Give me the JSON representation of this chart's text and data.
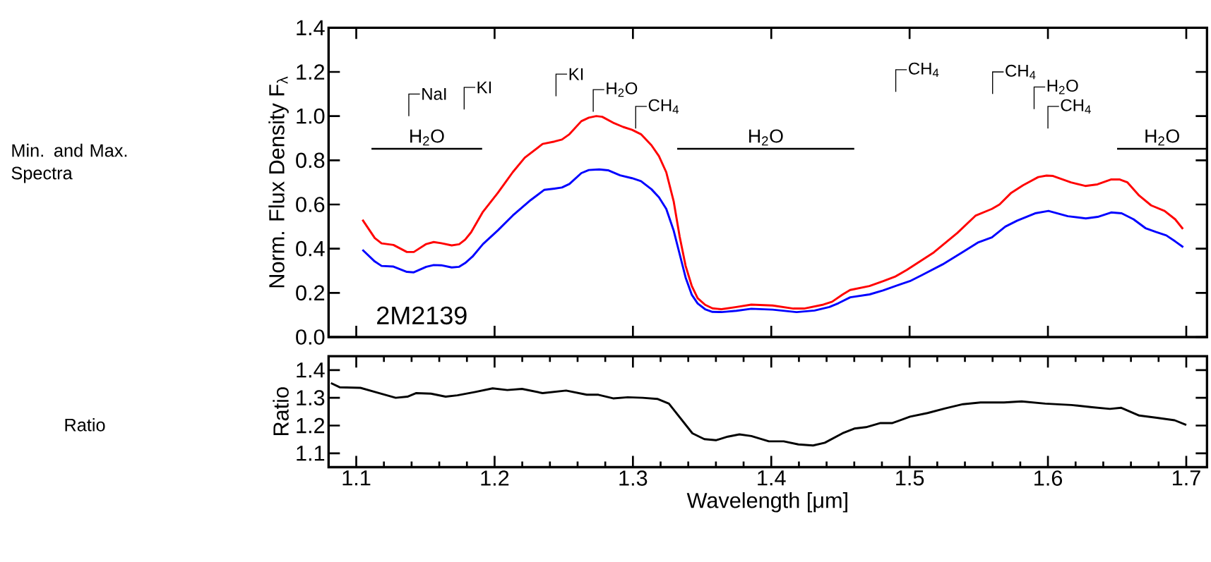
{
  "chart_data": [
    {
      "type": "line",
      "ylabel": "Norm. Flux Density F$_{λ}$",
      "xlim": [
        1.08,
        1.715
      ],
      "ylim": [
        0,
        1.4
      ],
      "xticks": [
        1.1,
        1.2,
        1.3,
        1.4,
        1.5,
        1.6,
        1.7
      ],
      "yticks": [
        {
          "value": 0,
          "label": "0.0"
        },
        0.2,
        0.4,
        0.6,
        0.8,
        {
          "value": 1,
          "label": "1.0"
        },
        1.2,
        1.4
      ],
      "tick_labels": "y",
      "series": [
        {
          "color": "#ff0000",
          "x": [
            1.1045,
            1.1134,
            1.1183,
            1.1269,
            1.1366,
            1.1416,
            1.1506,
            1.156,
            1.1614,
            1.169,
            1.1744,
            1.1787,
            1.183,
            1.1916,
            1.2024,
            1.2131,
            1.2218,
            1.2347,
            1.2433,
            1.2487,
            1.2541,
            1.2627,
            1.2681,
            1.2735,
            1.2778,
            1.2864,
            1.2929,
            1.2994,
            1.3058,
            1.3134,
            1.3188,
            1.3241,
            1.3295,
            1.3338,
            1.3381,
            1.3425,
            1.3468,
            1.3522,
            1.3575,
            1.364,
            1.3748,
            1.3856,
            1.401,
            1.416,
            1.4237,
            1.4377,
            1.444,
            1.4517,
            1.457,
            1.471,
            1.481,
            1.4894,
            1.498,
            1.5175,
            1.5345,
            1.5476,
            1.5595,
            1.565,
            1.5735,
            1.582,
            1.593,
            1.599,
            1.6037,
            1.6166,
            1.627,
            1.6358,
            1.6455,
            1.652,
            1.6575,
            1.666,
            1.6746,
            1.6843,
            1.692,
            1.6976
          ],
          "values": [
            0.531,
            0.448,
            0.424,
            0.417,
            0.385,
            0.385,
            0.421,
            0.43,
            0.425,
            0.415,
            0.42,
            0.441,
            0.474,
            0.567,
            0.653,
            0.746,
            0.812,
            0.874,
            0.885,
            0.894,
            0.918,
            0.977,
            0.993,
            1.0,
            0.997,
            0.968,
            0.951,
            0.938,
            0.918,
            0.868,
            0.819,
            0.746,
            0.613,
            0.454,
            0.322,
            0.232,
            0.176,
            0.146,
            0.13,
            0.126,
            0.136,
            0.147,
            0.143,
            0.129,
            0.129,
            0.147,
            0.16,
            0.193,
            0.213,
            0.231,
            0.253,
            0.273,
            0.304,
            0.383,
            0.471,
            0.549,
            0.58,
            0.6,
            0.653,
            0.687,
            0.724,
            0.731,
            0.729,
            0.7,
            0.684,
            0.691,
            0.713,
            0.713,
            0.7,
            0.64,
            0.596,
            0.571,
            0.533,
            0.489
          ]
        },
        {
          "color": "#0000ff",
          "x": [
            1.1045,
            1.1134,
            1.1183,
            1.1269,
            1.1366,
            1.1416,
            1.1506,
            1.156,
            1.1614,
            1.169,
            1.1744,
            1.1787,
            1.184,
            1.1916,
            1.2024,
            1.2131,
            1.2261,
            1.2358,
            1.2433,
            1.2487,
            1.2541,
            1.2627,
            1.2681,
            1.2756,
            1.282,
            1.2907,
            1.2994,
            1.3058,
            1.3134,
            1.3188,
            1.3241,
            1.3295,
            1.3338,
            1.3381,
            1.3425,
            1.3468,
            1.3522,
            1.3575,
            1.364,
            1.3748,
            1.3856,
            1.401,
            1.4183,
            1.4313,
            1.442,
            1.4485,
            1.4571,
            1.4711,
            1.4808,
            1.4938,
            1.5002,
            1.5088,
            1.5239,
            1.539,
            1.5498,
            1.5595,
            1.5692,
            1.5778,
            1.5907,
            1.6004,
            1.6144,
            1.6274,
            1.636,
            1.6457,
            1.6533,
            1.6619,
            1.6705,
            1.678,
            1.6856,
            1.692,
            1.6978
          ],
          "values": [
            0.395,
            0.342,
            0.322,
            0.319,
            0.295,
            0.293,
            0.318,
            0.326,
            0.325,
            0.315,
            0.318,
            0.335,
            0.364,
            0.421,
            0.483,
            0.55,
            0.62,
            0.666,
            0.672,
            0.677,
            0.693,
            0.742,
            0.756,
            0.759,
            0.755,
            0.732,
            0.719,
            0.706,
            0.669,
            0.633,
            0.58,
            0.481,
            0.375,
            0.269,
            0.192,
            0.152,
            0.126,
            0.114,
            0.113,
            0.119,
            0.128,
            0.124,
            0.113,
            0.12,
            0.136,
            0.153,
            0.18,
            0.193,
            0.211,
            0.24,
            0.253,
            0.28,
            0.329,
            0.387,
            0.429,
            0.451,
            0.5,
            0.527,
            0.56,
            0.571,
            0.547,
            0.537,
            0.544,
            0.564,
            0.56,
            0.533,
            0.493,
            0.476,
            0.46,
            0.433,
            0.407
          ]
        }
      ],
      "annotations": [
        "NaI",
        "KI",
        "KI",
        "H$_{2}$O",
        "CH$_{4}$",
        "CH$_{4}$",
        "CH$_{4}$",
        "H$_{2}$O",
        "CH$_{4}$",
        "H$_{2}$O",
        "H$_{2}$O",
        "H$_{2}$O",
        "2M2139",
        "Min. and Max. Spectra"
      ]
    },
    {
      "type": "line",
      "ylabel": "Ratio",
      "xlabel": "Wavelength [μm]",
      "xlim": [
        1.08,
        1.715
      ],
      "ylim": [
        1.05,
        1.45
      ],
      "xticks": [
        1.1,
        1.2,
        1.3,
        1.4,
        1.5,
        1.6,
        1.7
      ],
      "yticks": [
        1.1,
        1.2,
        1.3,
        1.4
      ],
      "series": [
        {
          "color": "#000000",
          "x": [
            1.0817,
            1.088,
            1.103,
            1.1136,
            1.1285,
            1.137,
            1.1434,
            1.154,
            1.1646,
            1.1731,
            1.186,
            1.1986,
            1.2092,
            1.2198,
            1.2347,
            1.2517,
            1.2666,
            1.275,
            1.2857,
            1.2963,
            1.307,
            1.3176,
            1.326,
            1.343,
            1.3516,
            1.36,
            1.3686,
            1.377,
            1.3856,
            1.3983,
            1.409,
            1.4196,
            1.4302,
            1.4387,
            1.4515,
            1.46,
            1.4685,
            1.479,
            1.4876,
            1.5003,
            1.513,
            1.5258,
            1.5386,
            1.5513,
            1.5683,
            1.581,
            1.598,
            1.617,
            1.632,
            1.6448,
            1.653,
            1.666,
            1.6788,
            1.6916,
            1.7
          ],
          "values": [
            1.353,
            1.338,
            1.336,
            1.321,
            1.3,
            1.304,
            1.317,
            1.315,
            1.304,
            1.309,
            1.321,
            1.334,
            1.328,
            1.332,
            1.317,
            1.326,
            1.311,
            1.311,
            1.298,
            1.302,
            1.3,
            1.296,
            1.279,
            1.172,
            1.151,
            1.147,
            1.16,
            1.168,
            1.162,
            1.143,
            1.143,
            1.132,
            1.128,
            1.138,
            1.172,
            1.189,
            1.194,
            1.209,
            1.209,
            1.232,
            1.245,
            1.262,
            1.277,
            1.283,
            1.283,
            1.287,
            1.279,
            1.274,
            1.266,
            1.26,
            1.264,
            1.236,
            1.228,
            1.219,
            1.202
          ]
        }
      ],
      "annotations": [
        "Ratio"
      ]
    }
  ]
}
